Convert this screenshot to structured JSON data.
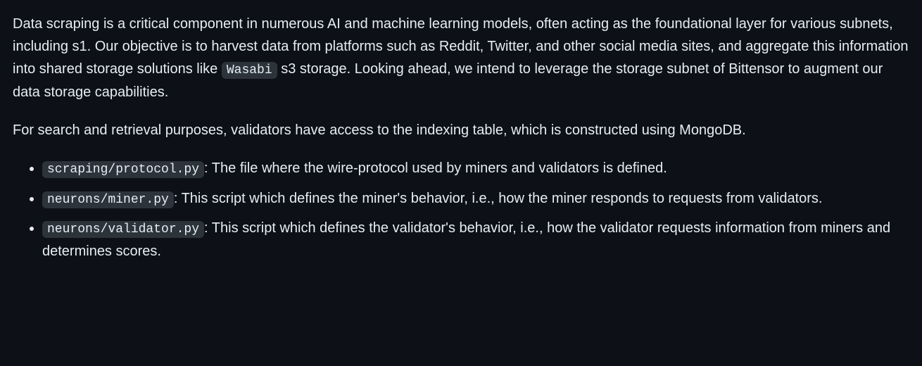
{
  "colors": {
    "background": "#0d1117",
    "text": "#e6edf3",
    "code_background": "#2d333b"
  },
  "typography": {
    "body_fontsize": 20,
    "code_fontsize": 18,
    "line_height": 1.6
  },
  "paragraph1": {
    "part1": "Data scraping is a critical component in numerous AI and machine learning models, often acting as the foundational layer for various subnets, including s1. Our objective is to harvest data from platforms such as Reddit, Twitter, and other social media sites, and aggregate this information into shared storage solutions like ",
    "code1": "Wasabi",
    "part2": " s3 storage. Looking ahead, we intend to leverage the storage subnet of Bittensor to augment our data storage capabilities."
  },
  "paragraph2": "For search and retrieval purposes, validators have access to the indexing table, which is constructed using MongoDB.",
  "list": {
    "item1": {
      "code": "scraping/protocol.py",
      "desc": ": The file where the wire-protocol used by miners and validators is defined."
    },
    "item2": {
      "code": "neurons/miner.py",
      "desc": ": This script which defines the miner's behavior, i.e., how the miner responds to requests from validators."
    },
    "item3": {
      "code": "neurons/validator.py",
      "desc": ": This script which defines the validator's behavior, i.e., how the validator requests information from miners and determines scores."
    }
  }
}
